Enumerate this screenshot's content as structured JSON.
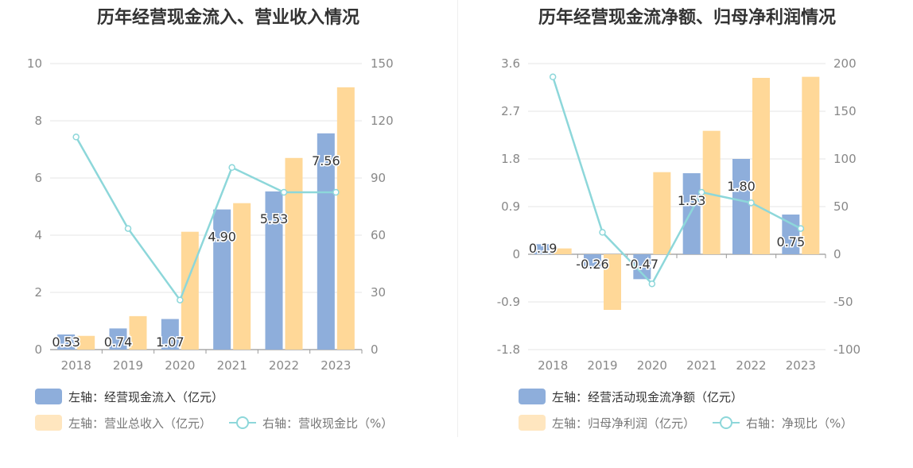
{
  "colors": {
    "bar_primary": "#8eaedb",
    "bar_secondary": "#ffd898",
    "line": "#8dd7da",
    "axis_text": "#888888",
    "grid": "#e6e6e6",
    "title": "#333333"
  },
  "chart_data": [
    {
      "type": "bar",
      "title": "历年经营现金流入、营业收入情况",
      "categories": [
        "2018",
        "2019",
        "2020",
        "2021",
        "2022",
        "2023"
      ],
      "left_axis": {
        "ticks": [
          "0",
          "2",
          "4",
          "6",
          "8",
          "10"
        ],
        "min": 0,
        "max": 10
      },
      "right_axis": {
        "ticks": [
          "0",
          "30",
          "60",
          "90",
          "120",
          "150"
        ],
        "min": 0,
        "max": 150
      },
      "series": [
        {
          "name": "左轴：经营现金流入（亿元）",
          "axis": "left",
          "kind": "bar",
          "color": "#8eaedb",
          "values": [
            0.53,
            0.74,
            1.07,
            4.9,
            5.53,
            7.56
          ],
          "labels": [
            "0.53",
            "0.74",
            "1.07",
            "4.90",
            "5.53",
            "7.56"
          ]
        },
        {
          "name": "左轴：营业总收入（亿元）",
          "axis": "left",
          "kind": "bar",
          "color": "#ffd898",
          "values": [
            0.48,
            1.17,
            4.12,
            5.12,
            6.7,
            9.17
          ]
        },
        {
          "name": "右轴：营收现金比（%）",
          "axis": "right",
          "kind": "line",
          "color": "#8dd7da",
          "values": [
            111.5,
            63.5,
            26.0,
            95.5,
            82.5,
            82.5
          ]
        }
      ]
    },
    {
      "type": "bar",
      "title": "历年经营现金流净额、归母净利润情况",
      "categories": [
        "2018",
        "2019",
        "2020",
        "2021",
        "2022",
        "2023"
      ],
      "left_axis": {
        "ticks": [
          "-1.8",
          "-0.9",
          "0",
          "0.9",
          "1.8",
          "2.7",
          "3.6"
        ],
        "min": -1.8,
        "max": 3.6
      },
      "right_axis": {
        "ticks": [
          "-100",
          "-50",
          "0",
          "50",
          "100",
          "150",
          "200"
        ],
        "min": -100,
        "max": 200
      },
      "series": [
        {
          "name": "左轴：经营活动现金流净额（亿元）",
          "axis": "left",
          "kind": "bar",
          "color": "#8eaedb",
          "values": [
            0.19,
            -0.26,
            -0.47,
            1.53,
            1.8,
            0.75
          ],
          "labels": [
            "0.19",
            "-0.26",
            "-0.47",
            "1.53",
            "1.80",
            "0.75"
          ]
        },
        {
          "name": "左轴：归母净利润（亿元）",
          "axis": "left",
          "kind": "bar",
          "color": "#ffd898",
          "values": [
            0.11,
            -1.05,
            1.55,
            2.33,
            3.33,
            3.35
          ]
        },
        {
          "name": "右轴：净现比（%）",
          "axis": "right",
          "kind": "line",
          "color": "#8dd7da",
          "values": [
            186,
            23,
            -31,
            65,
            54,
            27
          ]
        }
      ]
    }
  ]
}
